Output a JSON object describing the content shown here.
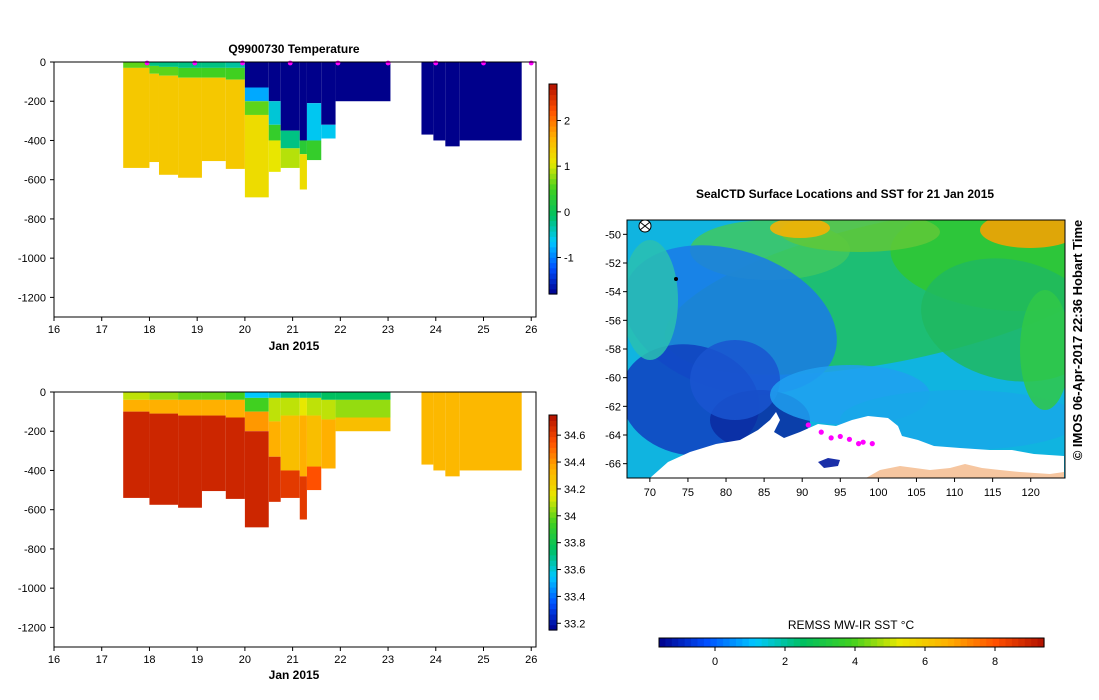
{
  "chart_data": [
    {
      "type": "heatmap",
      "title": "Q9900730  Temperature",
      "xlabel": "Jan 2015",
      "ylabel": "",
      "x_ticks": [
        "16",
        "17",
        "18",
        "19",
        "20",
        "21",
        "22",
        "23",
        "24",
        "25",
        "26"
      ],
      "xlim": [
        16,
        26.1
      ],
      "y_ticks": [
        "0",
        "-200",
        "-400",
        "-600",
        "-800",
        "-1000",
        "-1200"
      ],
      "ylim": [
        -1300,
        0
      ],
      "colorbar": {
        "ticks": [
          "2",
          "1",
          "0",
          "-1"
        ],
        "tick_values": [
          2,
          1,
          0,
          -1
        ],
        "range": [
          -1.8,
          2.8
        ],
        "colors": [
          "#00008b",
          "#0050ff",
          "#00c8ff",
          "#00c060",
          "#40d020",
          "#e8e800",
          "#ffb000",
          "#ff5000",
          "#b01000"
        ]
      },
      "surface_markers": [
        17.95,
        18.95,
        19.95,
        20.95,
        21.95,
        23.0,
        24.0,
        25.0,
        26.0
      ],
      "profiles": [
        {
          "x0": 17.45,
          "x1": 18.0,
          "bottom": -540,
          "layers": [
            [
              0,
              -30,
              0.6
            ],
            [
              -30,
              -540,
              1.4
            ]
          ]
        },
        {
          "x0": 18.0,
          "x1": 18.2,
          "bottom": -510,
          "layers": [
            [
              0,
              -20,
              -0.2
            ],
            [
              -20,
              -60,
              0.6
            ],
            [
              -60,
              -510,
              1.4
            ]
          ]
        },
        {
          "x0": 18.2,
          "x1": 18.6,
          "bottom": -575,
          "layers": [
            [
              0,
              -25,
              -0.2
            ],
            [
              -25,
              -70,
              0.6
            ],
            [
              -70,
              -575,
              1.4
            ]
          ]
        },
        {
          "x0": 18.6,
          "x1": 19.1,
          "bottom": -590,
          "layers": [
            [
              0,
              -30,
              -0.2
            ],
            [
              -30,
              -80,
              0.5
            ],
            [
              -80,
              -590,
              1.4
            ]
          ]
        },
        {
          "x0": 19.1,
          "x1": 19.6,
          "bottom": -505,
          "layers": [
            [
              0,
              -30,
              -0.2
            ],
            [
              -30,
              -80,
              0.5
            ],
            [
              -80,
              -505,
              1.4
            ]
          ]
        },
        {
          "x0": 19.6,
          "x1": 20.0,
          "bottom": -545,
          "layers": [
            [
              0,
              -30,
              -0.3
            ],
            [
              -30,
              -90,
              0.5
            ],
            [
              -90,
              -545,
              1.4
            ]
          ]
        },
        {
          "x0": 20.0,
          "x1": 20.5,
          "bottom": -690,
          "layers": [
            [
              0,
              -130,
              -1.8
            ],
            [
              -130,
              -200,
              -0.8
            ],
            [
              -200,
              -270,
              0.6
            ],
            [
              -270,
              -690,
              1.2
            ]
          ]
        },
        {
          "x0": 20.5,
          "x1": 20.75,
          "bottom": -560,
          "layers": [
            [
              0,
              -200,
              -1.8
            ],
            [
              -200,
              -320,
              -0.5
            ],
            [
              -320,
              -400,
              0.4
            ],
            [
              -400,
              -560,
              1.1
            ]
          ]
        },
        {
          "x0": 20.75,
          "x1": 21.15,
          "bottom": -540,
          "layers": [
            [
              0,
              -350,
              -1.8
            ],
            [
              -350,
              -440,
              -0.2
            ],
            [
              -440,
              -540,
              0.9
            ]
          ]
        },
        {
          "x0": 21.15,
          "x1": 21.3,
          "bottom": -650,
          "layers": [
            [
              0,
              -400,
              -1.8
            ],
            [
              -400,
              -470,
              0.3
            ],
            [
              -470,
              -650,
              1.2
            ]
          ]
        },
        {
          "x0": 21.3,
          "x1": 21.6,
          "bottom": -500,
          "layers": [
            [
              0,
              -210,
              -1.8
            ],
            [
              -210,
              -400,
              -0.6
            ],
            [
              -400,
              -500,
              0.4
            ]
          ]
        },
        {
          "x0": 21.6,
          "x1": 21.9,
          "bottom": -390,
          "layers": [
            [
              0,
              -320,
              -1.8
            ],
            [
              -320,
              -390,
              -0.6
            ]
          ]
        },
        {
          "x0": 21.9,
          "x1": 23.05,
          "bottom": -200,
          "layers": [
            [
              0,
              -200,
              -1.8
            ]
          ]
        },
        {
          "x0": 23.7,
          "x1": 23.95,
          "bottom": -370,
          "layers": [
            [
              0,
              -370,
              -1.8
            ]
          ]
        },
        {
          "x0": 23.95,
          "x1": 24.2,
          "bottom": -400,
          "layers": [
            [
              0,
              -400,
              -1.8
            ]
          ]
        },
        {
          "x0": 24.2,
          "x1": 24.5,
          "bottom": -430,
          "layers": [
            [
              0,
              -430,
              -1.8
            ]
          ]
        },
        {
          "x0": 24.5,
          "x1": 25.8,
          "bottom": -400,
          "layers": [
            [
              0,
              -400,
              -1.8
            ]
          ]
        }
      ]
    },
    {
      "type": "heatmap",
      "title": "",
      "xlabel": "Jan 2015",
      "ylabel": "",
      "x_ticks": [
        "16",
        "17",
        "18",
        "19",
        "20",
        "21",
        "22",
        "23",
        "24",
        "25",
        "26"
      ],
      "xlim": [
        16,
        26.1
      ],
      "y_ticks": [
        "0",
        "-200",
        "-400",
        "-600",
        "-800",
        "-1000",
        "-1200"
      ],
      "ylim": [
        -1300,
        0
      ],
      "colorbar": {
        "ticks": [
          "34.6",
          "34.4",
          "34.2",
          "34",
          "33.8",
          "33.6",
          "33.4",
          "33.2"
        ],
        "tick_values": [
          34.6,
          34.4,
          34.2,
          34.0,
          33.8,
          33.6,
          33.4,
          33.2
        ],
        "range": [
          33.15,
          34.75
        ],
        "colors": [
          "#00008b",
          "#0050ff",
          "#00c8ff",
          "#00c060",
          "#40d020",
          "#e8e800",
          "#ffb000",
          "#ff5000",
          "#b01000"
        ]
      },
      "profiles": [
        {
          "x0": 17.45,
          "x1": 18.0,
          "bottom": -540,
          "layers": [
            [
              0,
              -40,
              34.1
            ],
            [
              -40,
              -100,
              34.35
            ],
            [
              -100,
              -540,
              34.68
            ]
          ]
        },
        {
          "x0": 18.0,
          "x1": 18.6,
          "bottom": -575,
          "layers": [
            [
              0,
              -40,
              34.05
            ],
            [
              -40,
              -110,
              34.35
            ],
            [
              -110,
              -575,
              34.68
            ]
          ]
        },
        {
          "x0": 18.6,
          "x1": 19.1,
          "bottom": -590,
          "layers": [
            [
              0,
              -40,
              34.0
            ],
            [
              -40,
              -120,
              34.35
            ],
            [
              -120,
              -590,
              34.68
            ]
          ]
        },
        {
          "x0": 19.1,
          "x1": 19.6,
          "bottom": -505,
          "layers": [
            [
              0,
              -40,
              34.0
            ],
            [
              -40,
              -120,
              34.35
            ],
            [
              -120,
              -505,
              34.68
            ]
          ]
        },
        {
          "x0": 19.6,
          "x1": 20.0,
          "bottom": -545,
          "layers": [
            [
              0,
              -40,
              33.95
            ],
            [
              -40,
              -130,
              34.35
            ],
            [
              -130,
              -545,
              34.68
            ]
          ]
        },
        {
          "x0": 20.0,
          "x1": 20.5,
          "bottom": -690,
          "layers": [
            [
              0,
              -30,
              33.55
            ],
            [
              -30,
              -100,
              33.95
            ],
            [
              -100,
              -200,
              34.4
            ],
            [
              -200,
              -690,
              34.68
            ]
          ]
        },
        {
          "x0": 20.5,
          "x1": 20.75,
          "bottom": -560,
          "layers": [
            [
              0,
              -30,
              33.6
            ],
            [
              -30,
              -150,
              34.1
            ],
            [
              -150,
              -330,
              34.35
            ],
            [
              -330,
              -560,
              34.65
            ]
          ]
        },
        {
          "x0": 20.75,
          "x1": 21.15,
          "bottom": -540,
          "layers": [
            [
              0,
              -30,
              33.7
            ],
            [
              -30,
              -120,
              34.1
            ],
            [
              -120,
              -400,
              34.3
            ],
            [
              -400,
              -540,
              34.62
            ]
          ]
        },
        {
          "x0": 21.15,
          "x1": 21.3,
          "bottom": -650,
          "layers": [
            [
              0,
              -30,
              33.7
            ],
            [
              -30,
              -120,
              34.15
            ],
            [
              -120,
              -430,
              34.35
            ],
            [
              -430,
              -650,
              34.62
            ]
          ]
        },
        {
          "x0": 21.3,
          "x1": 21.6,
          "bottom": -500,
          "layers": [
            [
              0,
              -30,
              33.7
            ],
            [
              -30,
              -120,
              34.1
            ],
            [
              -120,
              -380,
              34.3
            ],
            [
              -380,
              -500,
              34.55
            ]
          ]
        },
        {
          "x0": 21.6,
          "x1": 21.9,
          "bottom": -390,
          "layers": [
            [
              0,
              -40,
              33.75
            ],
            [
              -40,
              -140,
              34.1
            ],
            [
              -140,
              -390,
              34.35
            ]
          ]
        },
        {
          "x0": 21.9,
          "x1": 23.05,
          "bottom": -200,
          "layers": [
            [
              0,
              -40,
              33.75
            ],
            [
              -40,
              -130,
              34.05
            ],
            [
              -130,
              -200,
              34.3
            ]
          ]
        },
        {
          "x0": 23.7,
          "x1": 23.95,
          "bottom": -370,
          "layers": [
            [
              0,
              -370,
              34.32
            ]
          ]
        },
        {
          "x0": 23.95,
          "x1": 24.2,
          "bottom": -400,
          "layers": [
            [
              0,
              -400,
              34.32
            ]
          ]
        },
        {
          "x0": 24.2,
          "x1": 24.5,
          "bottom": -430,
          "layers": [
            [
              0,
              -430,
              34.32
            ]
          ]
        },
        {
          "x0": 24.5,
          "x1": 25.8,
          "bottom": -400,
          "layers": [
            [
              0,
              -400,
              34.32
            ]
          ]
        }
      ]
    },
    {
      "type": "heatmap",
      "title": "SealCTD Surface Locations and SST for 21 Jan 2015",
      "xlabel": "",
      "ylabel": "",
      "x_ticks": [
        "70",
        "75",
        "80",
        "85",
        "90",
        "95",
        "100",
        "105",
        "110",
        "115",
        "120"
      ],
      "xlim": [
        67,
        124.5
      ],
      "y_ticks": [
        "-50",
        "-52",
        "-54",
        "-56",
        "-58",
        "-60",
        "-62",
        "-64",
        "-66"
      ],
      "ylim": [
        -67,
        -49
      ],
      "colorbar_label": "REMSS MW-IR SST °C",
      "colorbar": {
        "ticks": [
          "0",
          "2",
          "4",
          "6",
          "8"
        ],
        "tick_values": [
          0,
          2,
          4,
          6,
          8
        ],
        "range": [
          -1.6,
          9.4
        ],
        "colors": [
          "#00008b",
          "#0050ff",
          "#00c8ff",
          "#00c060",
          "#40d020",
          "#e8e800",
          "#ffb000",
          "#ff5000",
          "#b01000"
        ]
      },
      "seal_locations": [
        [
          90.8,
          -63.3
        ],
        [
          92.5,
          -63.8
        ],
        [
          93.8,
          -64.2
        ],
        [
          95.0,
          -64.1
        ],
        [
          96.2,
          -64.3
        ],
        [
          97.4,
          -64.6
        ],
        [
          98.0,
          -64.5
        ],
        [
          99.2,
          -64.6
        ]
      ],
      "credit": "© IMOS 06-Apr-2017 22:36 Hobart Time"
    }
  ]
}
